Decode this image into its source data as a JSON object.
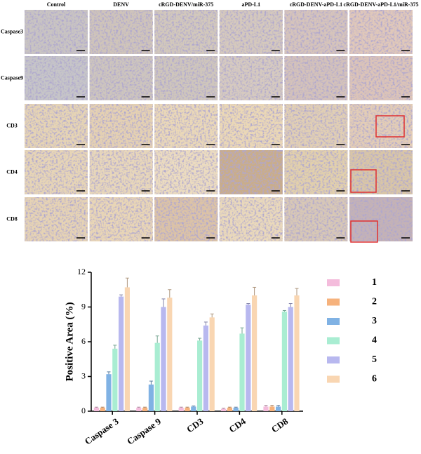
{
  "panel_grid": {
    "columns": [
      "Control",
      "DENV",
      "cRGD-DENV/miR-375",
      "aPD-L1",
      "cRGD-DENV-aPD-L1",
      "cRGD-DENV-aPD-L1/miR-375"
    ],
    "rows": [
      "Caspase3",
      "Caspase9",
      "CD3",
      "CD4",
      "CD8"
    ]
  },
  "chart_data": {
    "type": "bar",
    "y_label": "Positive Area (%)",
    "categories": [
      "Caspase 3",
      "Caspase 9",
      "CD3",
      "CD4",
      "CD8"
    ],
    "series": [
      {
        "name": "1",
        "color": "#f4bcdc",
        "values": [
          0.3,
          0.3,
          0.3,
          0.2,
          0.4
        ],
        "errors": [
          0.05,
          0.05,
          0.05,
          0.05,
          0.1
        ]
      },
      {
        "name": "2",
        "color": "#f6b27c",
        "values": [
          0.3,
          0.3,
          0.3,
          0.3,
          0.4
        ],
        "errors": [
          0.05,
          0.05,
          0.05,
          0.05,
          0.1
        ]
      },
      {
        "name": "3",
        "color": "#80b2e4",
        "values": [
          3.2,
          2.3,
          0.4,
          0.3,
          0.4
        ],
        "errors": [
          0.2,
          0.3,
          0.05,
          0.05,
          0.1
        ]
      },
      {
        "name": "4",
        "color": "#a9edd2",
        "values": [
          5.4,
          5.9,
          6.1,
          6.7,
          8.6
        ],
        "errors": [
          0.3,
          0.6,
          0.2,
          0.5,
          0.1
        ]
      },
      {
        "name": "5",
        "color": "#b8b8ef",
        "values": [
          9.9,
          9.0,
          7.4,
          9.2,
          9.0
        ],
        "errors": [
          0.15,
          0.7,
          0.3,
          0.1,
          0.3
        ]
      },
      {
        "name": "6",
        "color": "#f9d6b2",
        "values": [
          10.7,
          9.8,
          8.1,
          10.0,
          10.0
        ],
        "errors": [
          0.8,
          0.7,
          0.3,
          0.7,
          0.6
        ]
      }
    ],
    "ylim": [
      0,
      12
    ],
    "yticks": [
      0,
      3,
      6,
      9,
      12
    ]
  }
}
